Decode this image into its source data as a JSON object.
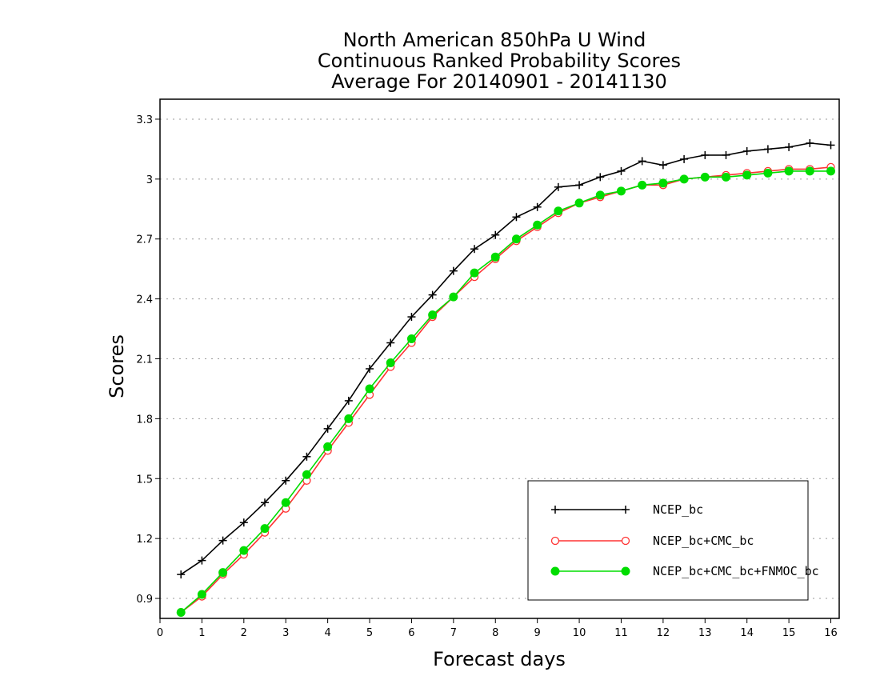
{
  "chart_data": {
    "type": "line",
    "title": [
      "North American 850hPa U Wind",
      "Continuous Ranked Probability Scores",
      "Average For 20140901 - 20141130"
    ],
    "xlabel": "Forecast days",
    "ylabel": "Scores",
    "xlim": [
      0,
      16.2
    ],
    "ylim": [
      0.8,
      3.4
    ],
    "xticks": [
      0,
      1,
      2,
      3,
      4,
      5,
      6,
      7,
      8,
      9,
      10,
      11,
      12,
      13,
      14,
      15,
      16
    ],
    "xtick_labels": [
      "0",
      "1",
      "2",
      "3",
      "4",
      "5",
      "6",
      "7",
      "8",
      "9",
      "10",
      "11",
      "12",
      "13",
      "14",
      "15",
      "16"
    ],
    "yticks": [
      0.9,
      1.2,
      1.5,
      1.8,
      2.1,
      2.4,
      2.7,
      3.0,
      3.3
    ],
    "ytick_labels": [
      "0.9",
      "1.2",
      "1.5",
      "1.8",
      "2.1",
      "2.4",
      "2.7",
      "3",
      "3.3"
    ],
    "grid": "horizontal-dotted",
    "legend_position": "bottom-right",
    "x": [
      0.5,
      1.0,
      1.5,
      2.0,
      2.5,
      3.0,
      3.5,
      4.0,
      4.5,
      5.0,
      5.5,
      6.0,
      6.5,
      7.0,
      7.5,
      8.0,
      8.5,
      9.0,
      9.5,
      10.0,
      10.5,
      11.0,
      11.5,
      12.0,
      12.5,
      13.0,
      13.5,
      14.0,
      14.5,
      15.0,
      15.5,
      16.0
    ],
    "series": [
      {
        "name": "NCEP_bc",
        "color": "#000000",
        "marker": "plus",
        "values": [
          1.02,
          1.09,
          1.19,
          1.28,
          1.38,
          1.49,
          1.61,
          1.75,
          1.89,
          2.05,
          2.18,
          2.31,
          2.42,
          2.54,
          2.65,
          2.72,
          2.81,
          2.86,
          2.96,
          2.97,
          3.01,
          3.04,
          3.09,
          3.07,
          3.1,
          3.12,
          3.12,
          3.14,
          3.15,
          3.16,
          3.18,
          3.17
        ]
      },
      {
        "name": "NCEP_bc+CMC_bc",
        "color": "#ff3333",
        "marker": "circle-open",
        "values": [
          0.83,
          0.91,
          1.02,
          1.12,
          1.23,
          1.35,
          1.49,
          1.64,
          1.78,
          1.92,
          2.06,
          2.18,
          2.31,
          2.41,
          2.51,
          2.6,
          2.69,
          2.76,
          2.83,
          2.88,
          2.91,
          2.94,
          2.97,
          2.97,
          3.0,
          3.01,
          3.02,
          3.03,
          3.04,
          3.05,
          3.05,
          3.06
        ]
      },
      {
        "name": "NCEP_bc+CMC_bc+FNMOC_bc",
        "color": "#00dd00",
        "marker": "circle-filled",
        "values": [
          0.83,
          0.92,
          1.03,
          1.14,
          1.25,
          1.38,
          1.52,
          1.66,
          1.8,
          1.95,
          2.08,
          2.2,
          2.32,
          2.41,
          2.53,
          2.61,
          2.7,
          2.77,
          2.84,
          2.88,
          2.92,
          2.94,
          2.97,
          2.98,
          3.0,
          3.01,
          3.01,
          3.02,
          3.03,
          3.04,
          3.04,
          3.04
        ]
      }
    ]
  }
}
